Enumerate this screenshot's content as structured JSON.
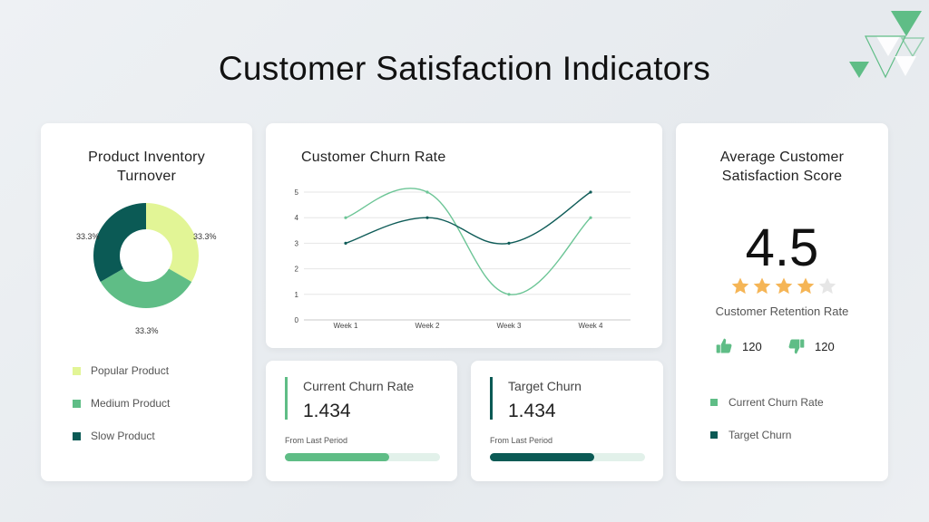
{
  "title": "Customer Satisfaction Indicators",
  "colors": {
    "light_green": "#e2f596",
    "medium_green": "#5fbd86",
    "dark_green": "#0b5a55",
    "teal_dark": "#0f5c58",
    "star": "#f5b556",
    "star_empty": "#e6e6e6"
  },
  "inventory": {
    "title_line1": "Product Inventory",
    "title_line2": "Turnover",
    "slices": [
      {
        "label": "Popular Product",
        "pct": "33.3%",
        "value": 33.3,
        "color": "#e2f596"
      },
      {
        "label": "Medium Product",
        "pct": "33.3%",
        "value": 33.3,
        "color": "#5fbd86"
      },
      {
        "label": "Slow Product",
        "pct": "33.3%",
        "value": 33.3,
        "color": "#0b5a55"
      }
    ]
  },
  "churn_chart": {
    "title": "Customer Churn Rate"
  },
  "chart_data": {
    "type": "line",
    "title": "Customer Churn Rate",
    "categories": [
      "Week 1",
      "Week 2",
      "Week 3",
      "Week 4"
    ],
    "ylim": [
      0,
      5
    ],
    "yticks": [
      "0",
      "1",
      "2",
      "3",
      "4",
      "5"
    ],
    "grid": true,
    "series": [
      {
        "name": "Current Churn Rate",
        "values": [
          4,
          5,
          1,
          4
        ],
        "color": "#6cc596"
      },
      {
        "name": "Target Churn",
        "values": [
          3,
          4,
          3,
          5
        ],
        "color": "#0f5c58"
      }
    ]
  },
  "kpis": [
    {
      "label": "Current Churn Rate",
      "value": "1.434",
      "sub": "From Last Period",
      "progress": 0.67,
      "color": "#5fbd86"
    },
    {
      "label": "Target Churn",
      "value": "1.434",
      "sub": "From Last Period",
      "progress": 0.67,
      "color": "#0b5a55"
    }
  ],
  "score": {
    "title_line1": "Average Customer",
    "title_line2": "Satisfaction Score",
    "value": "4.5",
    "stars_filled": 4,
    "stars_total": 5,
    "retention_label": "Customer Retention Rate",
    "thumbs_up_count": "120",
    "thumbs_down_count": "120",
    "legend": [
      {
        "label": "Current Churn Rate",
        "color": "#5fbd86"
      },
      {
        "label": "Target Churn",
        "color": "#0b5a55"
      }
    ]
  }
}
